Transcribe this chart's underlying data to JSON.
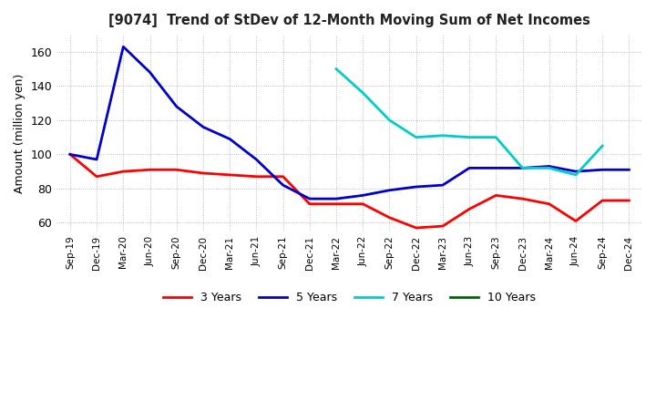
{
  "title": "[9074]  Trend of StDev of 12-Month Moving Sum of Net Incomes",
  "ylabel": "Amount (million yen)",
  "ylim": [
    55,
    170
  ],
  "yticks": [
    60,
    80,
    100,
    120,
    140,
    160
  ],
  "background_color": "#ffffff",
  "grid_color": "#aaaaaa",
  "line_colors": {
    "3yr": "#ff0000",
    "5yr": "#0000cc",
    "7yr": "#00cccc",
    "10yr": "#006600"
  },
  "legend_labels": [
    "3 Years",
    "5 Years",
    "7 Years",
    "10 Years"
  ],
  "x_labels": [
    "Sep-19",
    "Dec-19",
    "Mar-20",
    "Jun-20",
    "Sep-20",
    "Dec-20",
    "Mar-21",
    "Jun-21",
    "Sep-21",
    "Dec-21",
    "Mar-22",
    "Jun-22",
    "Sep-22",
    "Dec-22",
    "Mar-23",
    "Jun-23",
    "Sep-23",
    "Dec-23",
    "Mar-24",
    "Jun-24",
    "Sep-24",
    "Dec-24"
  ],
  "data_3yr": [
    100,
    87,
    90,
    91,
    91,
    89,
    88,
    87,
    87,
    71,
    71,
    71,
    63,
    57,
    58,
    68,
    76,
    74,
    71,
    61,
    73,
    73
  ],
  "data_5yr": [
    100,
    97,
    163,
    148,
    128,
    116,
    109,
    97,
    82,
    74,
    74,
    76,
    79,
    81,
    82,
    92,
    92,
    92,
    93,
    90,
    91,
    91
  ],
  "data_7yr": [
    null,
    null,
    null,
    null,
    null,
    null,
    null,
    null,
    null,
    null,
    150,
    136,
    120,
    110,
    111,
    110,
    110,
    92,
    92,
    88,
    105,
    null
  ],
  "data_10yr": [
    null,
    null,
    null,
    null,
    null,
    null,
    null,
    null,
    null,
    null,
    null,
    null,
    null,
    null,
    null,
    null,
    null,
    null,
    null,
    null,
    null,
    null
  ]
}
